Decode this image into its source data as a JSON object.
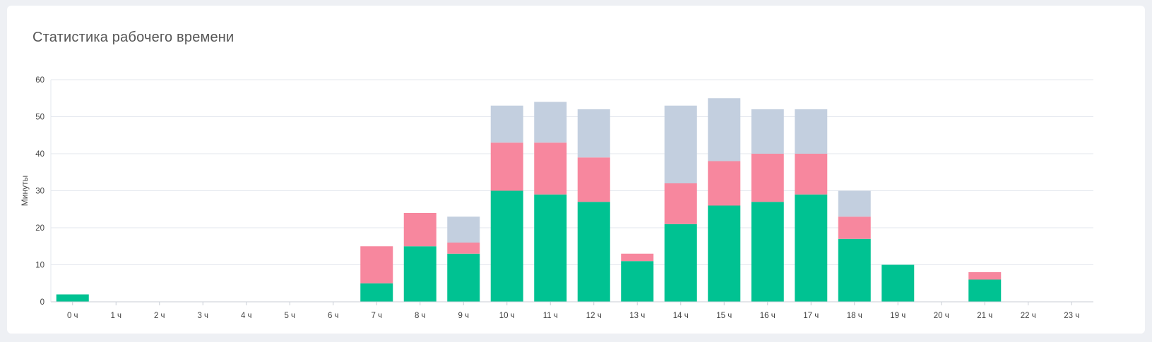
{
  "card": {
    "title": "Статистика рабочего времени"
  },
  "chart_data": {
    "type": "bar",
    "stacked": true,
    "title": "Статистика рабочего времени",
    "xlabel": "",
    "ylabel": "Минуты",
    "ylim": [
      0,
      60
    ],
    "yticks": [
      0,
      10,
      20,
      30,
      40,
      50,
      60
    ],
    "grid": true,
    "categories": [
      "0 ч",
      "1 ч",
      "2 ч",
      "3 ч",
      "4 ч",
      "5 ч",
      "6 ч",
      "7 ч",
      "8 ч",
      "9 ч",
      "10 ч",
      "11 ч",
      "12 ч",
      "13 ч",
      "14 ч",
      "15 ч",
      "16 ч",
      "17 ч",
      "18 ч",
      "19 ч",
      "20 ч",
      "21 ч",
      "22 ч",
      "23 ч"
    ],
    "series": [
      {
        "name": "green",
        "color": "#00c292",
        "values": [
          2,
          0,
          0,
          0,
          0,
          0,
          0,
          5,
          15,
          13,
          30,
          29,
          27,
          11,
          21,
          26,
          27,
          29,
          17,
          10,
          0,
          6,
          0,
          0
        ]
      },
      {
        "name": "pink",
        "color": "#f7879e",
        "values": [
          0,
          0,
          0,
          0,
          0,
          0,
          0,
          10,
          9,
          3,
          13,
          14,
          12,
          2,
          11,
          12,
          13,
          11,
          6,
          0,
          0,
          2,
          0,
          0
        ]
      },
      {
        "name": "gray",
        "color": "#c3cfdf",
        "values": [
          0,
          0,
          0,
          0,
          0,
          0,
          0,
          0,
          0,
          7,
          10,
          11,
          13,
          0,
          21,
          17,
          12,
          12,
          7,
          0,
          0,
          0,
          0,
          0
        ]
      }
    ]
  }
}
